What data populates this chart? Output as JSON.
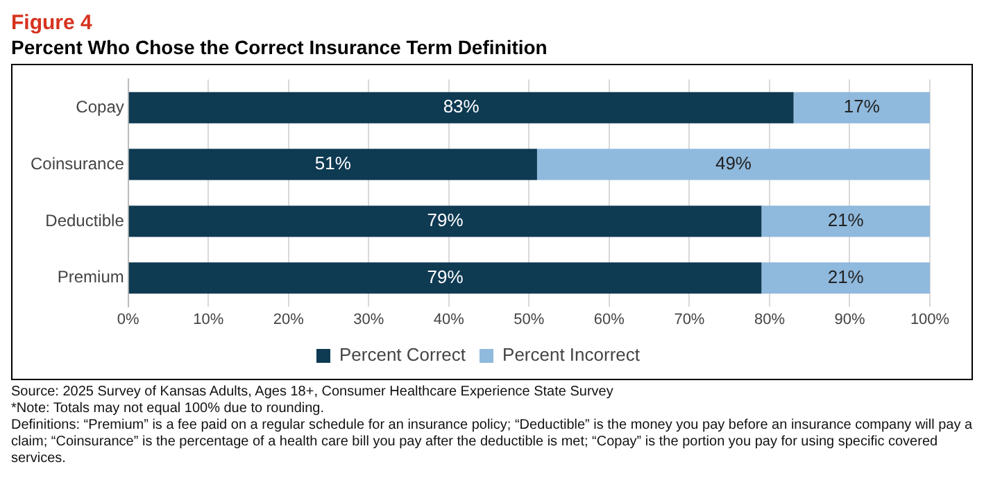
{
  "chart_data": {
    "type": "bar",
    "orientation": "horizontal",
    "stacked": true,
    "title": "Figure 4",
    "subtitle": "Percent Who Chose the Correct Insurance Term Definition",
    "categories": [
      "Copay",
      "Coinsurance",
      "Deductible",
      "Premium"
    ],
    "series": [
      {
        "name": "Percent Correct",
        "color": "#0e3a52",
        "values": [
          83,
          51,
          79,
          79
        ],
        "value_labels": [
          "83%",
          "51%",
          "79%",
          "79%"
        ]
      },
      {
        "name": "Percent Incorrect",
        "color": "#8fb9dd",
        "values": [
          17,
          49,
          21,
          21
        ],
        "value_labels": [
          "17%",
          "49%",
          "21%",
          "21%"
        ]
      }
    ],
    "xlim": [
      0,
      100
    ],
    "xticks": [
      {
        "value": 0,
        "label": "0%"
      },
      {
        "value": 10,
        "label": "10%"
      },
      {
        "value": 20,
        "label": "20%"
      },
      {
        "value": 30,
        "label": "30%"
      },
      {
        "value": 40,
        "label": "40%"
      },
      {
        "value": 50,
        "label": "50%"
      },
      {
        "value": 60,
        "label": "60%"
      },
      {
        "value": 70,
        "label": "70%"
      },
      {
        "value": 80,
        "label": "80%"
      },
      {
        "value": 90,
        "label": "90%"
      },
      {
        "value": 100,
        "label": "100%"
      }
    ],
    "grid": "x",
    "legend": "bottom",
    "annotations": [
      "Source: 2025 Survey of Kansas Adults, Ages 18+, Consumer Healthcare Experience State Survey",
      "*Note: Totals may not equal 100% due to rounding.",
      "Definitions: “Premium” is a fee paid on a regular schedule for an insurance policy; “Deductible” is the money you pay before an insurance company will pay a claim; “Coinsurance” is the percentage of a health care bill you pay after the deductible is met; “Copay” is the portion you pay for using specific covered services."
    ]
  }
}
